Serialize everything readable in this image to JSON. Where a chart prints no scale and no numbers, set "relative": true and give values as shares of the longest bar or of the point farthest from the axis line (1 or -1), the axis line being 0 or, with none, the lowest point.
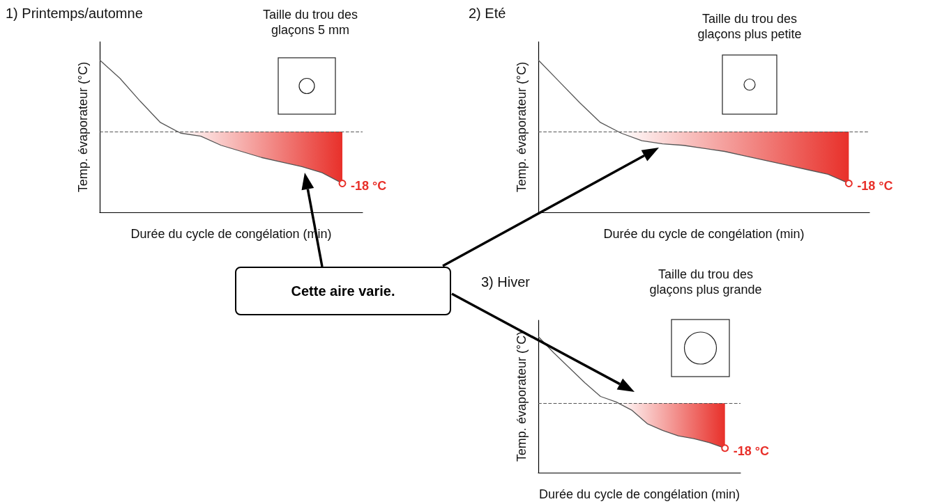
{
  "chart_data": [
    {
      "type": "line",
      "title": "1) Printemps/automne",
      "xlabel": "Durée du cycle de congélation (min)",
      "ylabel": "Temp. évaporateur (°C)",
      "relative": true,
      "marker": "none",
      "grid": false,
      "categories": [
        null,
        null,
        null,
        null,
        null,
        null,
        null,
        null,
        null,
        null,
        null,
        null,
        null,
        null
      ],
      "series": [
        {
          "color": "#555555",
          "values": [
            1,
            0.88,
            0.73,
            0.59,
            0.52,
            0.5,
            0.44,
            0.4,
            0.36,
            0.33,
            0.3,
            0.26,
            0.19,
            null
          ]
        }
      ],
      "ref_lines": [
        {
          "axis": "y",
          "value": 0.53,
          "color": "#555555",
          "line_style": "dashed"
        }
      ],
      "annotations": [
        "Taille du trou des glaçons 5 mm",
        "-18 °C",
        "Cette aire varie."
      ]
    },
    {
      "type": "line",
      "title": "2) Eté",
      "xlabel": "Durée du cycle de congélation (min)",
      "ylabel": "Temp. évaporateur (°C)",
      "relative": true,
      "marker": "none",
      "grid": false,
      "categories": [
        null,
        null,
        null,
        null,
        null,
        null,
        null,
        null,
        null,
        null,
        null,
        null,
        null,
        null,
        null,
        null,
        null
      ],
      "series": [
        {
          "color": "#555555",
          "values": [
            1,
            0.86,
            0.72,
            0.59,
            0.52,
            0.47,
            0.45,
            0.44,
            0.42,
            0.4,
            0.37,
            0.34,
            0.31,
            0.28,
            0.25,
            0.19,
            null
          ]
        }
      ],
      "ref_lines": [
        {
          "axis": "y",
          "value": 0.53,
          "color": "#555555",
          "line_style": "dashed"
        }
      ],
      "annotations": [
        "Taille du trou des glaçons plus petite",
        "-18 °C"
      ]
    },
    {
      "type": "line",
      "title": "3) Hiver",
      "xlabel": "Durée du cycle de congélation (min)",
      "ylabel": "Temp. évaporateur (°C)",
      "relative": true,
      "marker": "none",
      "grid": false,
      "categories": [
        null,
        null,
        null,
        null,
        null,
        null,
        null,
        null,
        null,
        null,
        null,
        null,
        null,
        null
      ],
      "series": [
        {
          "color": "#555555",
          "values": [
            1,
            0.88,
            0.77,
            0.66,
            0.56,
            0.52,
            0.46,
            0.36,
            0.31,
            0.27,
            0.25,
            0.22,
            0.18,
            null
          ]
        }
      ],
      "ref_lines": [
        {
          "axis": "y",
          "value": 0.51,
          "color": "#555555",
          "line_style": "dashed"
        }
      ],
      "annotations": [
        "Taille du trou des glaçons plus grande",
        "-18 °C"
      ]
    }
  ]
}
